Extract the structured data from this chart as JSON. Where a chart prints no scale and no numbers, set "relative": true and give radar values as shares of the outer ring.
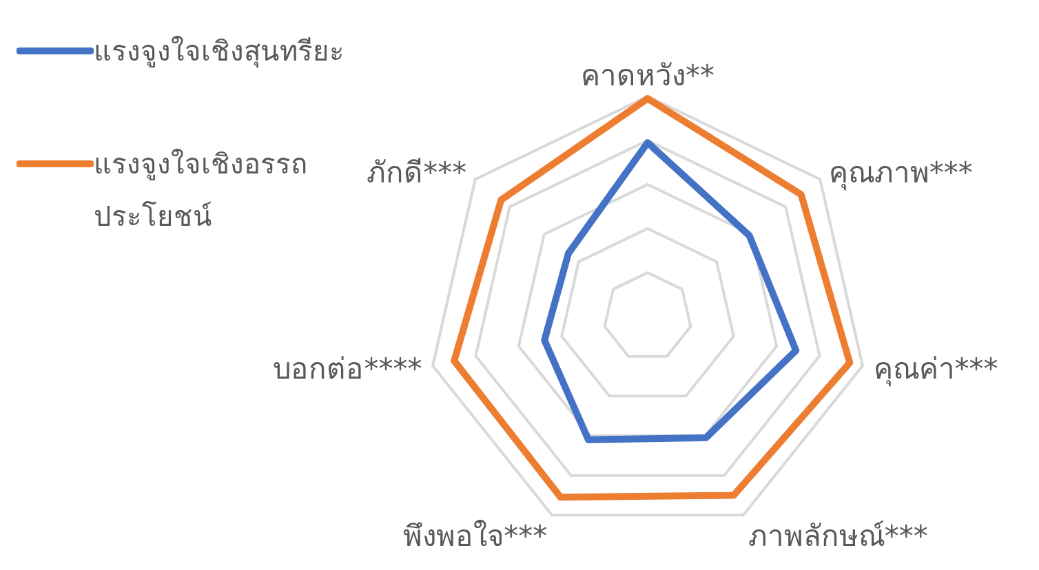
{
  "chart_data": {
    "type": "radar",
    "relative": true,
    "categories": [
      "คาดหวัง**",
      "คุณภาพ***",
      "คุณค่า***",
      "ภาพลักษณ์***",
      "พึงพอใจ***",
      "บอกต่อ****",
      "ภักดี***"
    ],
    "series": [
      {
        "name": "แรงจูงใจเชิงสุนทรียะ",
        "color": "#4472c4",
        "values": [
          0.79,
          0.59,
          0.69,
          0.61,
          0.62,
          0.48,
          0.46
        ]
      },
      {
        "name": "แรงจูงใจเชิงอรรถประโยชน์",
        "color": "#ed7d31",
        "values": [
          0.99,
          0.89,
          0.94,
          0.9,
          0.91,
          0.9,
          0.85
        ]
      }
    ],
    "grid": true,
    "legend": "top left"
  }
}
